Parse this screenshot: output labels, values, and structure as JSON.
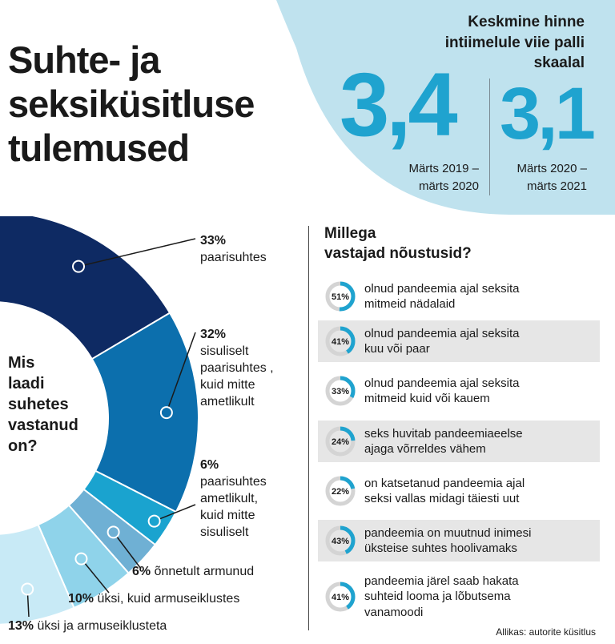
{
  "title": {
    "line1": "Suhte- ja",
    "line2": "seksiküsitluse",
    "line3": "tulemused"
  },
  "colors": {
    "accent": "#1fa3cf",
    "panel": "#bfe2ee",
    "ring_track": "#d4d4d4",
    "row_shade": "#e6e6e6"
  },
  "average": {
    "title_line1": "Keskmine hinne",
    "title_line2": "intiimelule viie palli",
    "title_line3": "skaalal",
    "values": [
      {
        "value": "3,4",
        "period_line1": "Märts 2019 –",
        "period_line2": "märts 2020"
      },
      {
        "value": "3,1",
        "period_line1": "Märts 2020 –",
        "period_line2": "märts 2021"
      }
    ]
  },
  "chart_data": [
    {
      "type": "pie",
      "title": "Mis laadi suhetes vastanud on?",
      "title_lines": [
        "Mis",
        "laadi",
        "suhetes",
        "vastanud",
        "on?"
      ],
      "categories": [
        "paarisuhtes",
        "sisuliselt paarisuhtes, kuid mitte ametlikult",
        "paarisuhtes ametlikult, kuid mitte sisuliselt",
        "õnnetult armunud",
        "üksi, kuid armuseiklustes",
        "üksi ja armuseiklusteta"
      ],
      "values": [
        33,
        32,
        6,
        6,
        10,
        13
      ],
      "colors": [
        "#0e2a63",
        "#0c6fad",
        "#1aa3cf",
        "#6fb0d4",
        "#8fd3ea",
        "#c8eaf6"
      ],
      "labels": [
        {
          "pct": "33%",
          "lines": [
            "paarisuhtes"
          ]
        },
        {
          "pct": "32%",
          "lines": [
            "sisuliselt",
            "paarisuhtes ,",
            "kuid mitte",
            "ametlikult"
          ]
        },
        {
          "pct": "6%",
          "lines": [
            "paarisuhtes",
            "ametlikult,",
            "kuid mitte",
            "sisuliselt"
          ]
        },
        {
          "pct": "6%",
          "text": "õnnetult armunud"
        },
        {
          "pct": "10%",
          "text": "üksi, kuid armuseiklustes"
        },
        {
          "pct": "13%",
          "text": "üksi ja armuseiklusteta"
        }
      ]
    },
    {
      "type": "bar",
      "title": "Millega vastajad nõustusid?",
      "title_lines": [
        "Millega",
        "vastajad nõustusid?"
      ],
      "unit": "%",
      "items": [
        {
          "value": 51,
          "lines": [
            "olnud pandeemia ajal seksita",
            "mitmeid nädalaid"
          ]
        },
        {
          "value": 41,
          "lines": [
            "olnud pandeemia ajal seksita",
            "kuu või paar"
          ]
        },
        {
          "value": 33,
          "lines": [
            "olnud pandeemia ajal seksita",
            "mitmeid kuid või kauem"
          ]
        },
        {
          "value": 24,
          "lines": [
            "seks huvitab pandeemiaeelse",
            "ajaga võrreldes vähem"
          ]
        },
        {
          "value": 22,
          "lines": [
            "on katsetanud pandeemia ajal",
            "seksi vallas midagi täiesti uut"
          ]
        },
        {
          "value": 43,
          "lines": [
            "pandeemia on muutnud inimesi",
            "üksteise suhtes hoolivamaks"
          ]
        },
        {
          "value": 41,
          "lines": [
            "pandeemia järel saab hakata",
            "suhteid looma ja lõbutsema",
            "vanamoodi"
          ]
        }
      ]
    }
  ],
  "source": "Allikas: autorite küsitlus"
}
